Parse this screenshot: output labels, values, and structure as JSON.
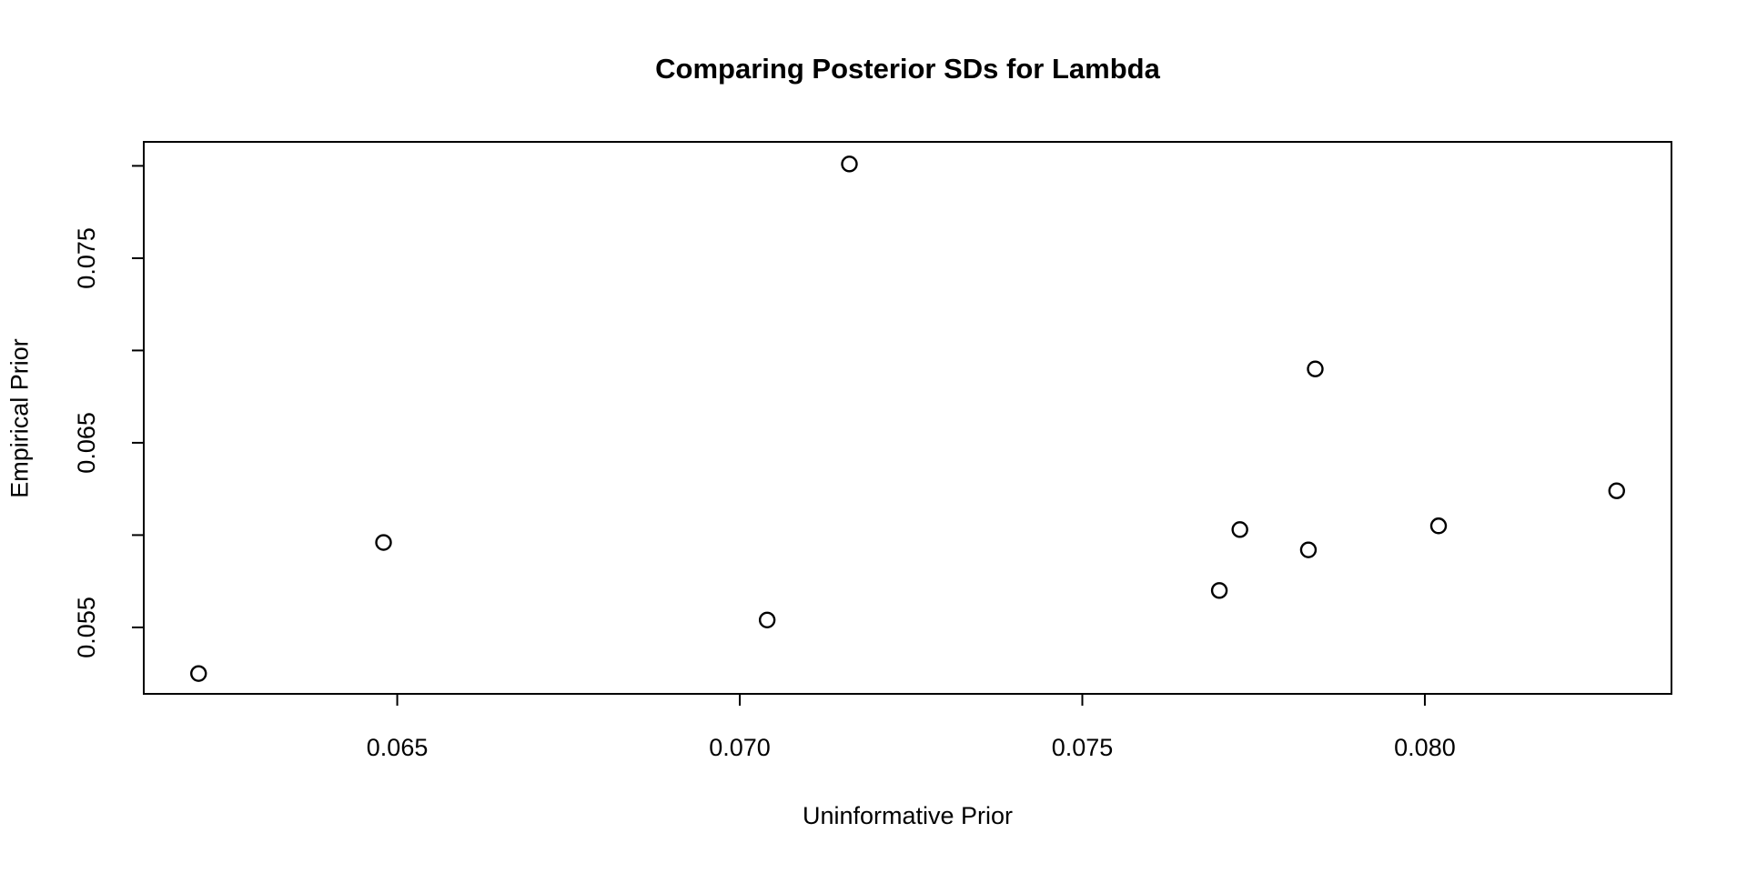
{
  "page": {
    "background_color": "#ffffff",
    "foreground_color": "#000000"
  },
  "chart_data": {
    "type": "scatter",
    "title": "Comparing Posterior SDs for Lambda",
    "xlabel": "Uninformative Prior",
    "ylabel": "Empirical Prior",
    "xlim": [
      0.0613,
      0.0836
    ],
    "ylim": [
      0.0514,
      0.0813
    ],
    "grid": false,
    "legend": "none",
    "x_ticks": [
      {
        "value": 0.065,
        "label": "0.065"
      },
      {
        "value": 0.07,
        "label": "0.070"
      },
      {
        "value": 0.075,
        "label": "0.075"
      },
      {
        "value": 0.08,
        "label": "0.080"
      }
    ],
    "y_ticks": [
      {
        "value": 0.055,
        "label": "0.055"
      },
      {
        "value": 0.06,
        "label": ""
      },
      {
        "value": 0.065,
        "label": "0.065"
      },
      {
        "value": 0.07,
        "label": ""
      },
      {
        "value": 0.075,
        "label": "0.075"
      },
      {
        "value": 0.08,
        "label": ""
      }
    ],
    "points": [
      {
        "x": 0.0621,
        "y": 0.0525
      },
      {
        "x": 0.0648,
        "y": 0.0596
      },
      {
        "x": 0.0704,
        "y": 0.0554
      },
      {
        "x": 0.0716,
        "y": 0.0801
      },
      {
        "x": 0.077,
        "y": 0.057
      },
      {
        "x": 0.0773,
        "y": 0.0603
      },
      {
        "x": 0.0783,
        "y": 0.0592
      },
      {
        "x": 0.0784,
        "y": 0.069
      },
      {
        "x": 0.0802,
        "y": 0.0605
      },
      {
        "x": 0.0828,
        "y": 0.0624
      }
    ],
    "marker": {
      "shape": "open-circle",
      "color": "#000000",
      "radius_px": 8,
      "stroke_px": 2.4
    }
  }
}
